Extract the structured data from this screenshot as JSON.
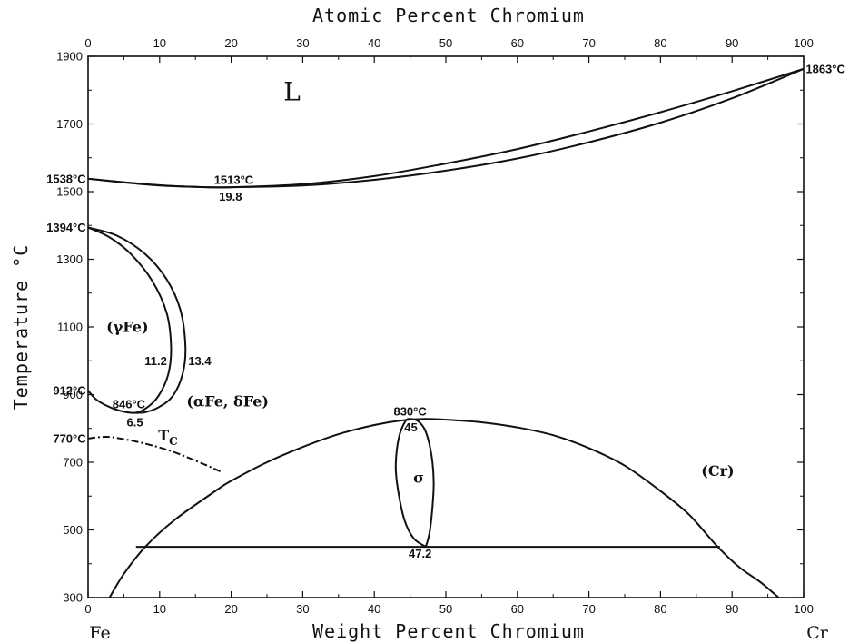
{
  "chart_data": {
    "type": "line",
    "title": "",
    "top_axis_label": "Atomic Percent Chromium",
    "xlabel": "Weight Percent Chromium",
    "ylabel": "Temperature °C",
    "x_left_element": "Fe",
    "x_right_element": "Cr",
    "xlim": [
      0,
      100
    ],
    "ylim": [
      300,
      1900
    ],
    "x_ticks": [
      0,
      10,
      20,
      30,
      40,
      50,
      60,
      70,
      80,
      90,
      100
    ],
    "y_ticks": [
      300,
      500,
      700,
      900,
      1100,
      1300,
      1500,
      1700,
      1900
    ],
    "top_ticks": [
      0,
      10,
      20,
      30,
      40,
      50,
      60,
      70,
      80,
      90,
      100
    ],
    "phase_labels": [
      {
        "text": "L",
        "x": 28.5,
        "y": 1770
      },
      {
        "text": "(γFe)",
        "x": 5.5,
        "y": 1085
      },
      {
        "text": "(αFe, δFe)",
        "x": 19.5,
        "y": 865
      },
      {
        "text": "σ",
        "x": 46.2,
        "y": 640
      },
      {
        "text": "(Cr)",
        "x": 88,
        "y": 660
      }
    ],
    "annotations": [
      {
        "text": "1538°C",
        "x": -0.3,
        "y": 1538,
        "anchor": "end"
      },
      {
        "text": "1394°C",
        "x": -0.3,
        "y": 1394,
        "anchor": "end"
      },
      {
        "text": "912°C",
        "x": -0.3,
        "y": 912,
        "anchor": "end"
      },
      {
        "text": "770°C",
        "x": -0.3,
        "y": 770,
        "anchor": "end"
      },
      {
        "text": "1863°C",
        "x": 100.3,
        "y": 1863,
        "anchor": "start"
      },
      {
        "text": "1513°C",
        "x": 17.6,
        "y": 1535,
        "anchor": "start"
      },
      {
        "text": "19.8",
        "x": 18.3,
        "y": 1485,
        "anchor": "start"
      },
      {
        "text": "11.2",
        "x": 7.9,
        "y": 1000,
        "anchor": "start"
      },
      {
        "text": "13.4",
        "x": 14.0,
        "y": 1000,
        "anchor": "start"
      },
      {
        "text": "846°C",
        "x": 3.4,
        "y": 872,
        "anchor": "start"
      },
      {
        "text": "6.5",
        "x": 5.4,
        "y": 818,
        "anchor": "start"
      },
      {
        "text": "830°C",
        "x": 42.7,
        "y": 850,
        "anchor": "start"
      },
      {
        "text": "45",
        "x": 44.2,
        "y": 804,
        "anchor": "start"
      },
      {
        "text": "47.2",
        "x": 44.8,
        "y": 430,
        "anchor": "start"
      }
    ],
    "tc_label": {
      "main": "T",
      "sub": "C",
      "x": 9.8,
      "y": 765
    },
    "series": [
      {
        "values": [
          [
            0,
            1538
          ],
          [
            5,
            1528
          ],
          [
            10,
            1519
          ],
          [
            15,
            1514
          ],
          [
            19.8,
            1513
          ],
          [
            30,
            1522
          ],
          [
            40,
            1546
          ],
          [
            50,
            1583
          ],
          [
            60,
            1626
          ],
          [
            70,
            1678
          ],
          [
            80,
            1735
          ],
          [
            90,
            1797
          ],
          [
            100,
            1863
          ]
        ]
      },
      {
        "values": [
          [
            0,
            1538
          ],
          [
            5,
            1527
          ],
          [
            10,
            1518
          ],
          [
            15,
            1514
          ],
          [
            19.8,
            1513
          ],
          [
            30,
            1518
          ],
          [
            40,
            1535
          ],
          [
            50,
            1562
          ],
          [
            60,
            1598
          ],
          [
            70,
            1646
          ],
          [
            80,
            1704
          ],
          [
            90,
            1776
          ],
          [
            100,
            1863
          ]
        ]
      },
      {
        "values": [
          [
            0,
            1394
          ],
          [
            3,
            1365
          ],
          [
            6,
            1315
          ],
          [
            9,
            1235
          ],
          [
            11,
            1140
          ],
          [
            11.6,
            1040
          ],
          [
            11.2,
            960
          ],
          [
            9.8,
            895
          ],
          [
            8,
            858
          ],
          [
            6.5,
            846
          ],
          [
            4.5,
            852
          ],
          [
            2.5,
            868
          ],
          [
            1,
            888
          ],
          [
            0,
            912
          ]
        ]
      },
      {
        "values": [
          [
            0,
            1394
          ],
          [
            4,
            1370
          ],
          [
            8,
            1315
          ],
          [
            11,
            1240
          ],
          [
            12.9,
            1150
          ],
          [
            13.6,
            1040
          ],
          [
            13.2,
            960
          ],
          [
            11.8,
            895
          ],
          [
            9.8,
            862
          ],
          [
            8,
            848
          ],
          [
            6.5,
            846
          ]
        ]
      },
      {
        "values": [
          [
            0,
            770
          ],
          [
            2,
            775
          ],
          [
            4,
            772
          ],
          [
            8,
            755
          ],
          [
            12,
            730
          ],
          [
            16,
            696
          ],
          [
            18.8,
            670
          ]
        ],
        "style": "dash-dot"
      },
      {
        "values": [
          [
            3,
            300
          ],
          [
            5,
            370
          ],
          [
            8,
            450
          ],
          [
            12,
            528
          ],
          [
            18,
            618
          ],
          [
            20,
            645
          ],
          [
            25,
            700
          ],
          [
            30,
            745
          ],
          [
            35,
            783
          ],
          [
            40,
            810
          ],
          [
            44,
            824
          ],
          [
            47,
            828
          ],
          [
            50,
            826
          ],
          [
            55,
            818
          ],
          [
            60,
            803
          ],
          [
            65,
            780
          ],
          [
            70,
            742
          ],
          [
            75,
            690
          ],
          [
            80,
            615
          ],
          [
            84,
            545
          ],
          [
            88,
            450
          ],
          [
            91,
            390
          ],
          [
            94,
            345
          ],
          [
            96.5,
            300
          ]
        ]
      },
      {
        "values": [
          [
            6.7,
            450
          ],
          [
            88.3,
            450
          ]
        ]
      },
      {
        "values": [
          [
            47.2,
            450
          ],
          [
            45.5,
            475
          ],
          [
            44.2,
            530
          ],
          [
            43.3,
            620
          ],
          [
            43,
            690
          ],
          [
            43.4,
            770
          ],
          [
            44.3,
            820
          ],
          [
            45,
            828
          ],
          [
            46.2,
            820
          ],
          [
            47.2,
            790
          ],
          [
            48,
            720
          ],
          [
            48.3,
            640
          ],
          [
            48.1,
            560
          ],
          [
            47.7,
            490
          ],
          [
            47.2,
            450
          ]
        ]
      }
    ]
  }
}
